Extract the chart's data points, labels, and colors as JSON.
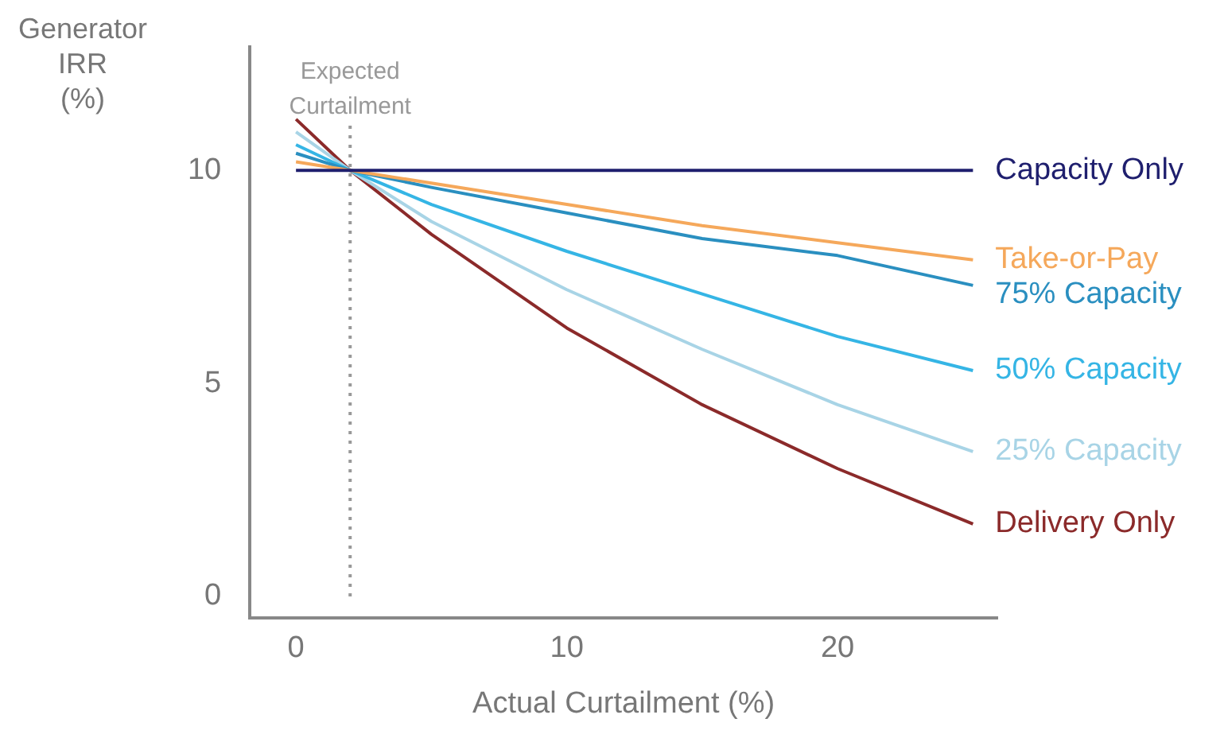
{
  "chart_data": {
    "type": "line",
    "xlabel": "Actual Curtailment (%)",
    "ylabel": "Generator IRR (%)",
    "x": [
      0,
      2,
      5,
      10,
      15,
      20,
      25
    ],
    "series": [
      {
        "name": "Capacity Only",
        "color": "#1f1f6e",
        "values": [
          10,
          10,
          10,
          10,
          10,
          10,
          10
        ]
      },
      {
        "name": "Take-or-Pay",
        "color": "#f5a85b",
        "values": [
          10.2,
          10,
          9.7,
          9.2,
          8.7,
          8.3,
          7.9
        ]
      },
      {
        "name": "75% Capacity",
        "color": "#2a8fc0",
        "values": [
          10.4,
          10,
          9.6,
          9.0,
          8.4,
          8.0,
          7.3
        ]
      },
      {
        "name": "50% Capacity",
        "color": "#35b5e5",
        "values": [
          10.6,
          10,
          9.2,
          8.1,
          7.1,
          6.1,
          5.3
        ]
      },
      {
        "name": "25% Capacity",
        "color": "#a8d4e6",
        "values": [
          10.9,
          10,
          8.8,
          7.2,
          5.8,
          4.5,
          3.4
        ]
      },
      {
        "name": "Delivery Only",
        "color": "#8b2a2a",
        "values": [
          11.2,
          10,
          8.5,
          6.3,
          4.5,
          3.0,
          1.7
        ]
      }
    ],
    "xlim": [
      -1.7,
      25.9
    ],
    "ylim": [
      -0.5,
      12.9
    ],
    "xticks": [
      0,
      10,
      20
    ],
    "yticks": [
      0,
      5,
      10
    ],
    "ref_lines": [
      {
        "axis": "x",
        "value": 2,
        "label": "Expected Curtailment",
        "color": "#999999",
        "line_style": "dotted"
      }
    ],
    "grid": false,
    "legend": false,
    "marker": "none",
    "line_style": "solid"
  }
}
